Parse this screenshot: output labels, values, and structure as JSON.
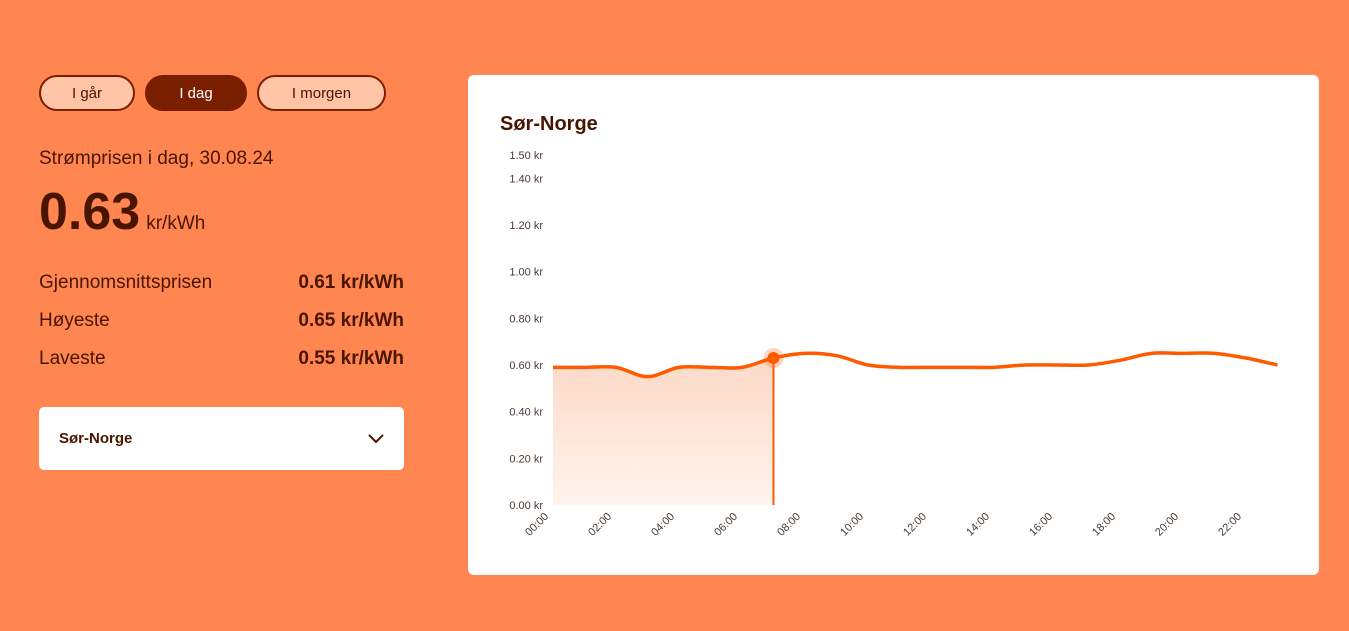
{
  "tabs": [
    "I går",
    "I dag",
    "I morgen"
  ],
  "active_tab": 1,
  "price_heading": "Strømprisen i dag, 30.08.24",
  "current_price": {
    "value": "0.63",
    "unit": "kr/kWh"
  },
  "stats": [
    {
      "label": "Gjennomsnittsprisen",
      "value": "0.61 kr/kWh"
    },
    {
      "label": "Høyeste",
      "value": "0.65 kr/kWh"
    },
    {
      "label": "Laveste",
      "value": "0.55 kr/kWh"
    }
  ],
  "region_select": "Sør-Norge",
  "chart_data": {
    "type": "line",
    "title": "Sør-Norge",
    "color": "#ff5a00",
    "categories": [
      "00:00",
      null,
      "02:00",
      null,
      "04:00",
      null,
      "06:00",
      null,
      "08:00",
      null,
      "10:00",
      null,
      "12:00",
      null,
      "14:00",
      null,
      "16:00",
      null,
      "18:00",
      null,
      "20:00",
      null,
      "22:00",
      null
    ],
    "values": [
      0.59,
      0.59,
      0.59,
      0.55,
      0.59,
      0.59,
      0.59,
      0.63,
      0.65,
      0.64,
      0.6,
      0.59,
      0.59,
      0.59,
      0.59,
      0.6,
      0.6,
      0.6,
      0.62,
      0.65,
      0.65,
      0.65,
      0.63,
      0.6
    ],
    "current_index": 7,
    "ylim": [
      0,
      1.5
    ],
    "yticks": [
      {
        "value": 0,
        "label": "0.00 kr"
      },
      {
        "value": 0.2,
        "label": "0.20 kr"
      },
      {
        "value": 0.4,
        "label": "0.40 kr"
      },
      {
        "value": 0.6,
        "label": "0.60 kr"
      },
      {
        "value": 0.8,
        "label": "0.80 kr"
      },
      {
        "value": 1,
        "label": "1.00 kr"
      },
      {
        "value": 1.2,
        "label": "1.20 kr"
      },
      {
        "value": 1.4,
        "label": "1.40 kr"
      },
      {
        "value": 1.5,
        "label": "1.50 kr"
      }
    ],
    "grid": false
  }
}
